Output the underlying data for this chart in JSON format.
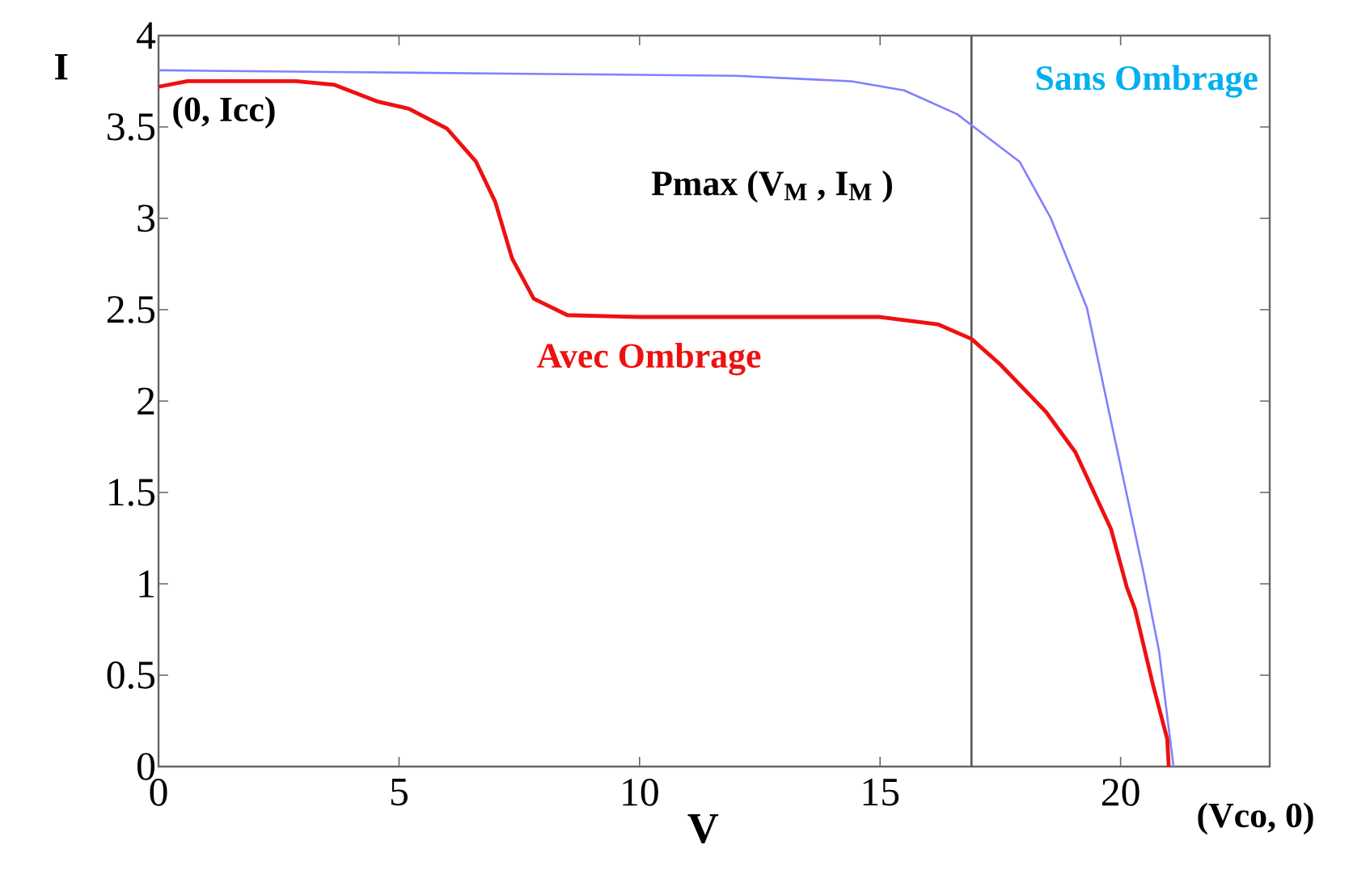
{
  "chart_data": {
    "type": "line",
    "xlabel": "V",
    "ylabel": "I",
    "xlim": [
      0,
      23.1
    ],
    "ylim": [
      0,
      4
    ],
    "xticks": [
      0,
      5,
      10,
      15,
      20
    ],
    "yticks": [
      0,
      0.5,
      1,
      1.5,
      2,
      2.5,
      3,
      3.5,
      4
    ],
    "series": [
      {
        "name": "Sans Ombrage",
        "color": "#8080ff",
        "x": [
          0,
          4,
          8,
          12,
          14.4,
          15.5,
          16.6,
          16.9,
          17.9,
          18.55,
          19.3,
          19.8,
          20.47,
          20.8,
          21.1
        ],
        "values": [
          3.81,
          3.8,
          3.79,
          3.78,
          3.75,
          3.7,
          3.57,
          3.51,
          3.31,
          3.0,
          2.51,
          1.89,
          1.07,
          0.63,
          0
        ]
      },
      {
        "name": "Avec Ombrage",
        "color": "#ee1111",
        "x": [
          0,
          0.6,
          2.86,
          3.66,
          4.54,
          5.2,
          6.0,
          6.6,
          7.0,
          7.35,
          7.8,
          8.5,
          10,
          12,
          15.0,
          16.2,
          16.9,
          17.5,
          18.45,
          19.06,
          19.8,
          20.13,
          20.3,
          20.67,
          20.97,
          21.0
        ],
        "values": [
          3.72,
          3.75,
          3.75,
          3.73,
          3.64,
          3.6,
          3.49,
          3.31,
          3.09,
          2.78,
          2.56,
          2.47,
          2.46,
          2.46,
          2.46,
          2.42,
          2.34,
          2.2,
          1.94,
          1.72,
          1.3,
          0.98,
          0.86,
          0.45,
          0.15,
          0
        ]
      }
    ],
    "ref_lines": [
      {
        "axis": "x",
        "value": 16.9,
        "color": "#555555"
      }
    ],
    "annotations": [
      {
        "text": "(0, Icc)",
        "x": 0,
        "y": 3.81
      },
      {
        "text": "Pmax (V$_{M}$ , I$_{M}$ )",
        "x": 16.9,
        "y": 3.51
      },
      {
        "text": "(Vco, 0)",
        "x": 21.1,
        "y": 0
      }
    ],
    "marker": "none",
    "line_style": "solid"
  }
}
